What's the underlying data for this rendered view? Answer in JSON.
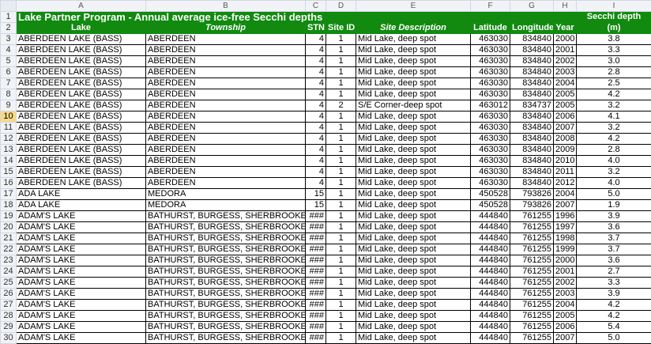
{
  "columns": [
    "A",
    "B",
    "C",
    "D",
    "E",
    "F",
    "G",
    "H",
    "I"
  ],
  "title": "Lake Partner Program - Annual average ice-free Secchi depths",
  "secchi_header_top": "Secchi depth",
  "headers": [
    "Lake",
    "Township",
    "STN",
    "Site ID",
    "Site Description",
    "Latitude",
    "Longitude",
    "Year",
    "(m)"
  ],
  "rows": [
    {
      "n": "3",
      "c": [
        "ABERDEEN LAKE (BASS)",
        "ABERDEEN",
        "4",
        "1",
        "Mid Lake, deep spot",
        "463030",
        "834840",
        "2000",
        "3.8"
      ]
    },
    {
      "n": "4",
      "c": [
        "ABERDEEN LAKE (BASS)",
        "ABERDEEN",
        "4",
        "1",
        "Mid Lake, deep spot",
        "463030",
        "834840",
        "2001",
        "3.3"
      ]
    },
    {
      "n": "5",
      "c": [
        "ABERDEEN LAKE (BASS)",
        "ABERDEEN",
        "4",
        "1",
        "Mid Lake, deep spot",
        "463030",
        "834840",
        "2002",
        "3.0"
      ]
    },
    {
      "n": "6",
      "c": [
        "ABERDEEN LAKE (BASS)",
        "ABERDEEN",
        "4",
        "1",
        "Mid Lake, deep spot",
        "463030",
        "834840",
        "2003",
        "2.8"
      ]
    },
    {
      "n": "7",
      "c": [
        "ABERDEEN LAKE (BASS)",
        "ABERDEEN",
        "4",
        "1",
        "Mid Lake, deep spot",
        "463030",
        "834840",
        "2004",
        "2.5"
      ]
    },
    {
      "n": "8",
      "c": [
        "ABERDEEN LAKE (BASS)",
        "ABERDEEN",
        "4",
        "1",
        "Mid Lake, deep spot",
        "463030",
        "834840",
        "2005",
        "4.2"
      ]
    },
    {
      "n": "9",
      "c": [
        "ABERDEEN LAKE (BASS)",
        "ABERDEEN",
        "4",
        "2",
        "S/E Corner-deep spot",
        "463012",
        "834737",
        "2005",
        "3.2"
      ]
    },
    {
      "n": "10",
      "c": [
        "ABERDEEN LAKE (BASS)",
        "ABERDEEN",
        "4",
        "1",
        "Mid Lake, deep spot",
        "463030",
        "834840",
        "2006",
        "4.1"
      ]
    },
    {
      "n": "11",
      "c": [
        "ABERDEEN LAKE (BASS)",
        "ABERDEEN",
        "4",
        "1",
        "Mid Lake, deep spot",
        "463030",
        "834840",
        "2007",
        "3.2"
      ]
    },
    {
      "n": "12",
      "c": [
        "ABERDEEN LAKE (BASS)",
        "ABERDEEN",
        "4",
        "1",
        "Mid Lake, deep spot",
        "463030",
        "834840",
        "2008",
        "4.2"
      ]
    },
    {
      "n": "13",
      "c": [
        "ABERDEEN LAKE (BASS)",
        "ABERDEEN",
        "4",
        "1",
        "Mid Lake, deep spot",
        "463030",
        "834840",
        "2009",
        "2.8"
      ]
    },
    {
      "n": "14",
      "c": [
        "ABERDEEN LAKE (BASS)",
        "ABERDEEN",
        "4",
        "1",
        "Mid Lake, deep spot",
        "463030",
        "834840",
        "2010",
        "4.0"
      ]
    },
    {
      "n": "15",
      "c": [
        "ABERDEEN LAKE (BASS)",
        "ABERDEEN",
        "4",
        "1",
        "Mid Lake, deep spot",
        "463030",
        "834840",
        "2011",
        "3.2"
      ]
    },
    {
      "n": "16",
      "c": [
        "ABERDEEN LAKE (BASS)",
        "ABERDEEN",
        "4",
        "1",
        "Mid Lake, deep spot",
        "463030",
        "834840",
        "2012",
        "4.0"
      ]
    },
    {
      "n": "17",
      "c": [
        "ADA LAKE",
        "MEDORA",
        "15",
        "1",
        "Mid Lake, deep spot",
        "450528",
        "793826",
        "2004",
        "5.0"
      ]
    },
    {
      "n": "18",
      "c": [
        "ADA LAKE",
        "MEDORA",
        "15",
        "1",
        "Mid Lake, deep spot",
        "450528",
        "793826",
        "2007",
        "1.9"
      ]
    },
    {
      "n": "19",
      "c": [
        "ADAM'S LAKE",
        "BATHURST, BURGESS, SHERBROOKE",
        "###",
        "1",
        "Mid Lake, deep spot",
        "444840",
        "761255",
        "1996",
        "3.9"
      ]
    },
    {
      "n": "20",
      "c": [
        "ADAM'S LAKE",
        "BATHURST, BURGESS, SHERBROOKE",
        "###",
        "1",
        "Mid Lake, deep spot",
        "444840",
        "761255",
        "1997",
        "3.6"
      ]
    },
    {
      "n": "21",
      "c": [
        "ADAM'S LAKE",
        "BATHURST, BURGESS, SHERBROOKE",
        "###",
        "1",
        "Mid Lake, deep spot",
        "444840",
        "761255",
        "1998",
        "3.7"
      ]
    },
    {
      "n": "22",
      "c": [
        "ADAM'S LAKE",
        "BATHURST, BURGESS, SHERBROOKE",
        "###",
        "1",
        "Mid Lake, deep spot",
        "444840",
        "761255",
        "1999",
        "3.7"
      ]
    },
    {
      "n": "23",
      "c": [
        "ADAM'S LAKE",
        "BATHURST, BURGESS, SHERBROOKE",
        "###",
        "1",
        "Mid Lake, deep spot",
        "444840",
        "761255",
        "2000",
        "3.6"
      ]
    },
    {
      "n": "24",
      "c": [
        "ADAM'S LAKE",
        "BATHURST, BURGESS, SHERBROOKE",
        "###",
        "1",
        "Mid Lake, deep spot",
        "444840",
        "761255",
        "2001",
        "2.7"
      ]
    },
    {
      "n": "25",
      "c": [
        "ADAM'S LAKE",
        "BATHURST, BURGESS, SHERBROOKE",
        "###",
        "1",
        "Mid Lake, deep spot",
        "444840",
        "761255",
        "2002",
        "3.3"
      ]
    },
    {
      "n": "26",
      "c": [
        "ADAM'S LAKE",
        "BATHURST, BURGESS, SHERBROOKE",
        "###",
        "1",
        "Mid Lake, deep spot",
        "444840",
        "761255",
        "2003",
        "3.9"
      ]
    },
    {
      "n": "27",
      "c": [
        "ADAM'S LAKE",
        "BATHURST, BURGESS, SHERBROOKE",
        "###",
        "1",
        "Mid Lake, deep spot",
        "444840",
        "761255",
        "2004",
        "4.2"
      ]
    },
    {
      "n": "28",
      "c": [
        "ADAM'S LAKE",
        "BATHURST, BURGESS, SHERBROOKE",
        "###",
        "1",
        "Mid Lake, deep spot",
        "444840",
        "761255",
        "2005",
        "4.2"
      ]
    },
    {
      "n": "29",
      "c": [
        "ADAM'S LAKE",
        "BATHURST, BURGESS, SHERBROOKE",
        "###",
        "1",
        "Mid Lake, deep spot",
        "444840",
        "761255",
        "2006",
        "5.4"
      ]
    },
    {
      "n": "30",
      "c": [
        "ADAM'S LAKE",
        "BATHURST, BURGESS, SHERBROOKE",
        "###",
        "1",
        "Mid Lake, deep spot",
        "444840",
        "761255",
        "2007",
        "5.0"
      ]
    }
  ],
  "active_row": "10",
  "colors": {
    "header_bg": "#118a0f",
    "header_text": "#ffffff",
    "active_row_header": "#f8d984"
  }
}
